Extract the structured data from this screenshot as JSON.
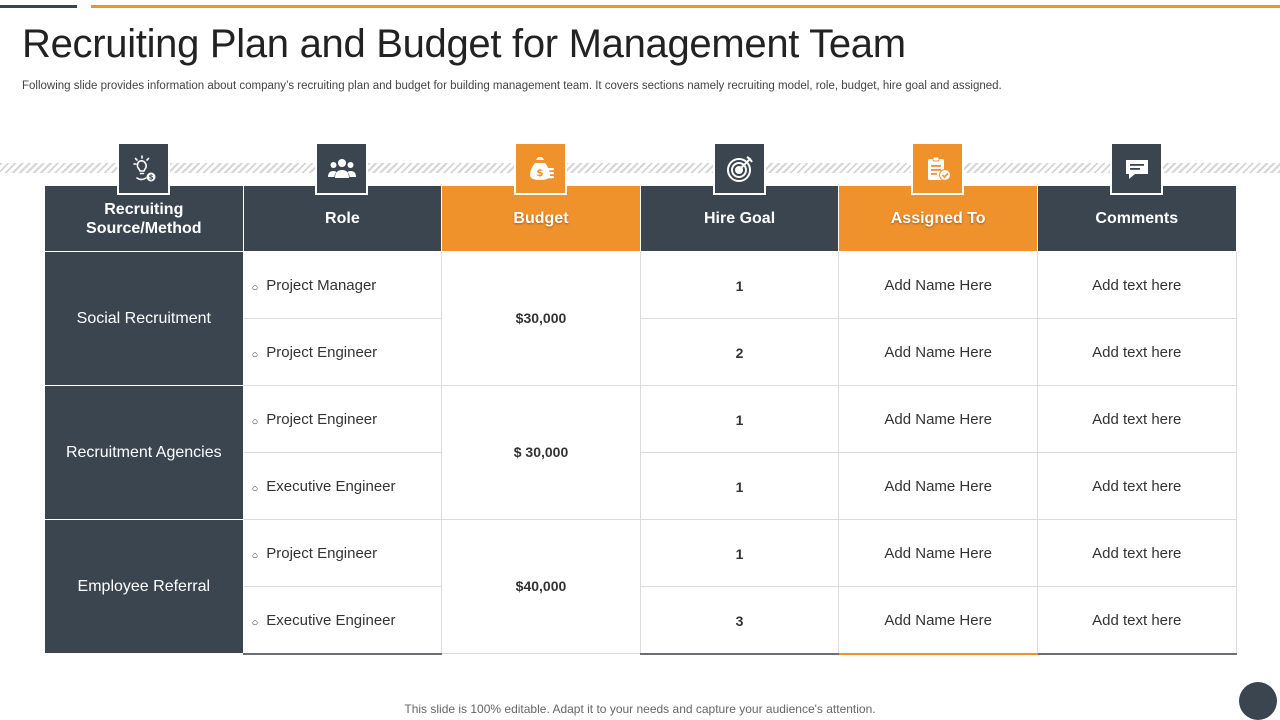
{
  "slide": {
    "title": "Recruiting Plan and Budget for Management Team",
    "subtitle": "Following slide provides information about company’s recruiting plan and budget for building management team. It covers sections namely recruiting model, role, budget, hire goal and assigned.",
    "footer": "This slide is 100% editable. Adapt it to your needs and capture your audience's attention."
  },
  "colors": {
    "dark": "#3b4550",
    "accent": "#f0922b"
  },
  "table": {
    "headers": [
      {
        "label": "Recruiting Source/Method",
        "icon": "lightbulb-money-icon",
        "style": "dark"
      },
      {
        "label": "Role",
        "icon": "team-icon",
        "style": "dark"
      },
      {
        "label": "Budget",
        "icon": "money-bag-icon",
        "style": "orange"
      },
      {
        "label": "Hire Goal",
        "icon": "target-icon",
        "style": "dark"
      },
      {
        "label": "Assigned To",
        "icon": "clipboard-check-icon",
        "style": "orange"
      },
      {
        "label": "Comments",
        "icon": "speech-bubble-icon",
        "style": "dark"
      }
    ],
    "groups": [
      {
        "source": "Social Recruitment",
        "budget": "$30,000",
        "rows": [
          {
            "role": "Project Manager",
            "hire_goal": "1",
            "assigned": "Add Name Here",
            "comments": "Add text here"
          },
          {
            "role": "Project Engineer",
            "hire_goal": "2",
            "assigned": "Add Name Here",
            "comments": "Add text here"
          }
        ]
      },
      {
        "source": "Recruitment Agencies",
        "budget": "$ 30,000",
        "rows": [
          {
            "role": "Project Engineer",
            "hire_goal": "1",
            "assigned": "Add Name Here",
            "comments": "Add text here"
          },
          {
            "role": "Executive Engineer",
            "hire_goal": "1",
            "assigned": "Add Name Here",
            "comments": "Add text here"
          }
        ]
      },
      {
        "source": "Employee Referral",
        "budget": "$40,000",
        "rows": [
          {
            "role": "Project Engineer",
            "hire_goal": "1",
            "assigned": "Add Name Here",
            "comments": "Add text here"
          },
          {
            "role": "Executive Engineer",
            "hire_goal": "3",
            "assigned": "Add Name Here",
            "comments": "Add text here"
          }
        ]
      }
    ]
  }
}
